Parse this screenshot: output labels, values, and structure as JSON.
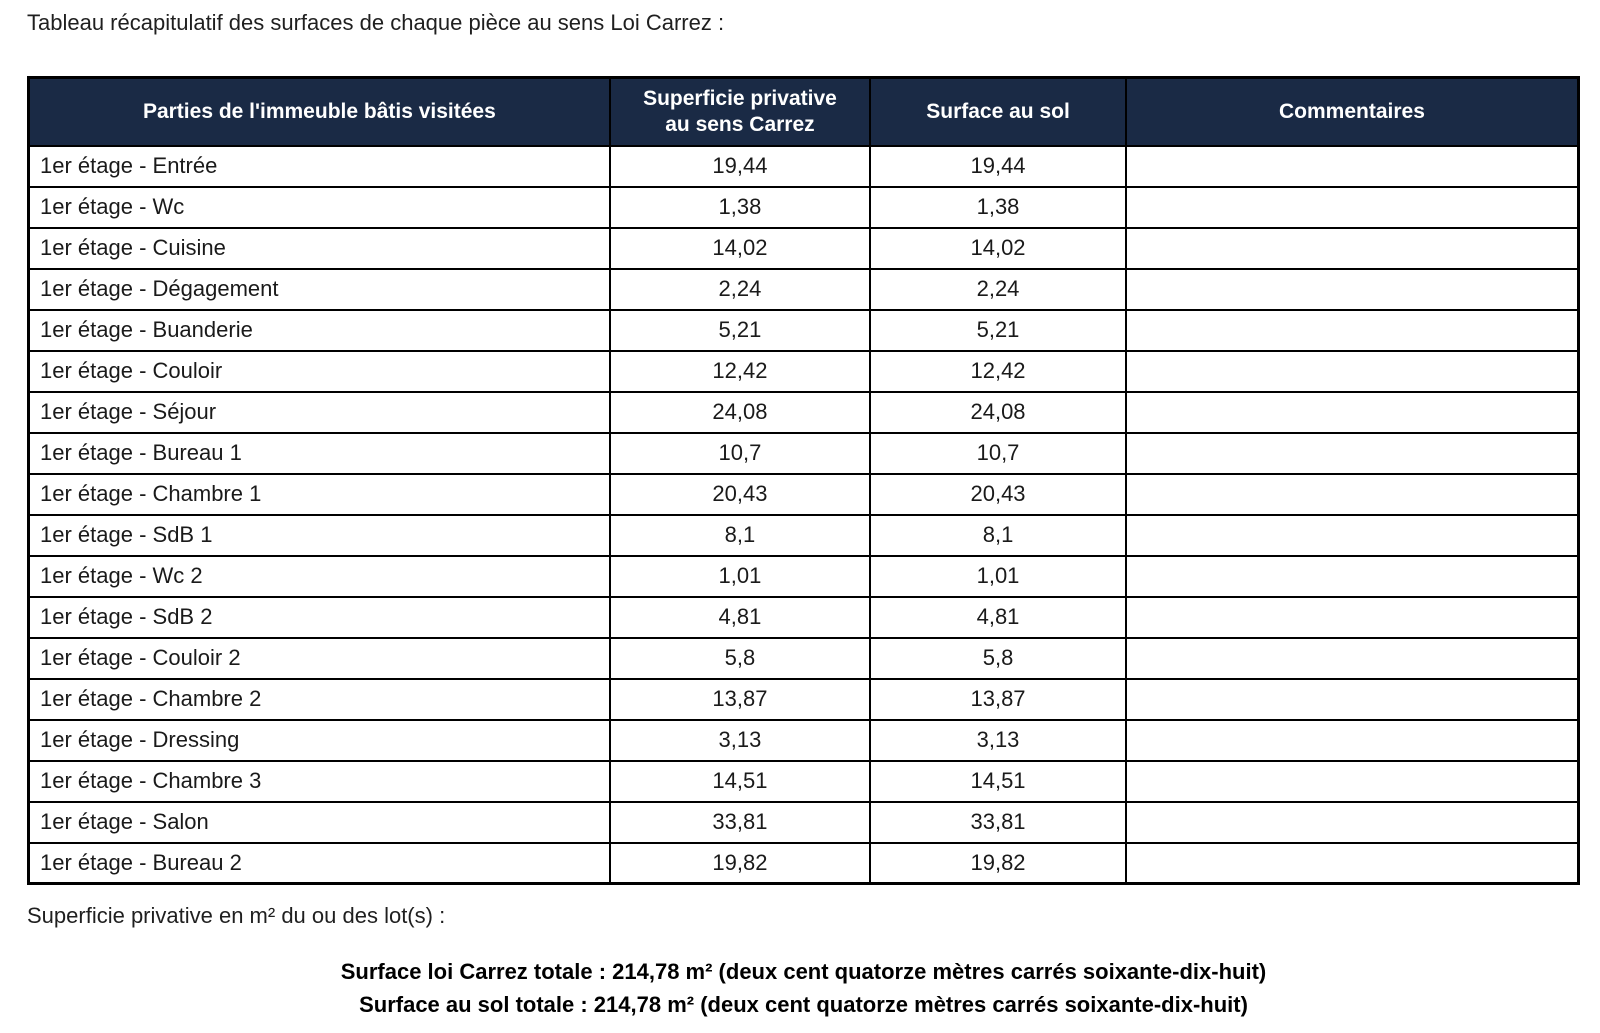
{
  "page": {
    "title": "Tableau récapitulatif des surfaces de chaque pièce au sens Loi Carrez :",
    "footer_label": "Superficie privative en m² du ou des lot(s) :",
    "total_carrez": "Surface loi Carrez totale : 214,78 m² (deux cent quatorze mètres carrés soixante-dix-huit)",
    "total_sol": "Surface au sol totale : 214,78 m² (deux cent quatorze mètres carrés soixante-dix-huit)"
  },
  "colors": {
    "header_bg": "#1a2a45",
    "header_text": "#ffffff",
    "border": "#000000"
  },
  "table": {
    "headers": [
      "Parties de l'immeuble bâtis visitées",
      "Superficie privative au sens Carrez",
      "Surface au sol",
      "Commentaires"
    ],
    "rows": [
      {
        "room": "1er étage - Entrée",
        "carrez": "19,44",
        "sol": "19,44",
        "comment": ""
      },
      {
        "room": "1er étage - Wc",
        "carrez": "1,38",
        "sol": "1,38",
        "comment": ""
      },
      {
        "room": "1er étage - Cuisine",
        "carrez": "14,02",
        "sol": "14,02",
        "comment": ""
      },
      {
        "room": "1er étage - Dégagement",
        "carrez": "2,24",
        "sol": "2,24",
        "comment": ""
      },
      {
        "room": "1er étage - Buanderie",
        "carrez": "5,21",
        "sol": "5,21",
        "comment": ""
      },
      {
        "room": "1er étage - Couloir",
        "carrez": "12,42",
        "sol": "12,42",
        "comment": ""
      },
      {
        "room": "1er étage - Séjour",
        "carrez": "24,08",
        "sol": "24,08",
        "comment": ""
      },
      {
        "room": "1er étage - Bureau 1",
        "carrez": "10,7",
        "sol": "10,7",
        "comment": ""
      },
      {
        "room": "1er étage - Chambre 1",
        "carrez": "20,43",
        "sol": "20,43",
        "comment": ""
      },
      {
        "room": "1er étage - SdB 1",
        "carrez": "8,1",
        "sol": "8,1",
        "comment": ""
      },
      {
        "room": "1er étage - Wc 2",
        "carrez": "1,01",
        "sol": "1,01",
        "comment": ""
      },
      {
        "room": "1er étage - SdB 2",
        "carrez": "4,81",
        "sol": "4,81",
        "comment": ""
      },
      {
        "room": "1er étage - Couloir 2",
        "carrez": "5,8",
        "sol": "5,8",
        "comment": ""
      },
      {
        "room": "1er étage - Chambre 2",
        "carrez": "13,87",
        "sol": "13,87",
        "comment": ""
      },
      {
        "room": "1er étage - Dressing",
        "carrez": "3,13",
        "sol": "3,13",
        "comment": ""
      },
      {
        "room": "1er étage - Chambre 3",
        "carrez": "14,51",
        "sol": "14,51",
        "comment": ""
      },
      {
        "room": "1er étage - Salon",
        "carrez": "33,81",
        "sol": "33,81",
        "comment": ""
      },
      {
        "room": "1er étage - Bureau 2",
        "carrez": "19,82",
        "sol": "19,82",
        "comment": ""
      }
    ]
  }
}
